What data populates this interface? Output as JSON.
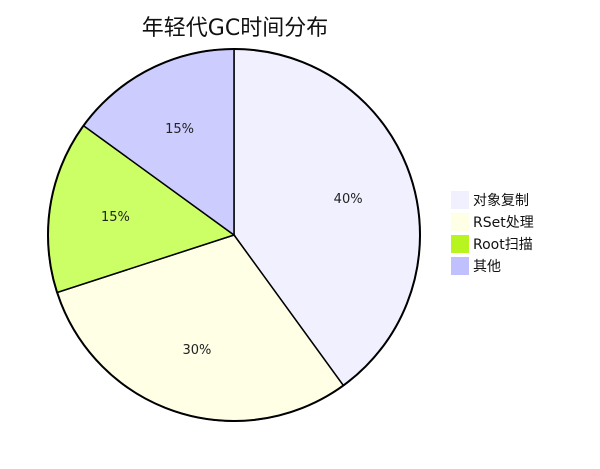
{
  "chart_data": {
    "type": "pie",
    "title": "年轻代GC时间分布",
    "legend_position": "right",
    "slices": [
      {
        "label": "对象复制",
        "value": 40,
        "display": "40%",
        "color": "#f0f0ff"
      },
      {
        "label": "RSet处理",
        "value": 30,
        "display": "30%",
        "color": "#ffffe6"
      },
      {
        "label": "Root扫描",
        "value": 15,
        "display": "15%",
        "color": "#ccff66"
      },
      {
        "label": "其他",
        "value": 15,
        "display": "15%",
        "color": "#ccccff"
      }
    ],
    "legend_swatches": [
      "#f0f0ff",
      "#ffffe6",
      "#b8f520",
      "#c0c0ff"
    ]
  }
}
